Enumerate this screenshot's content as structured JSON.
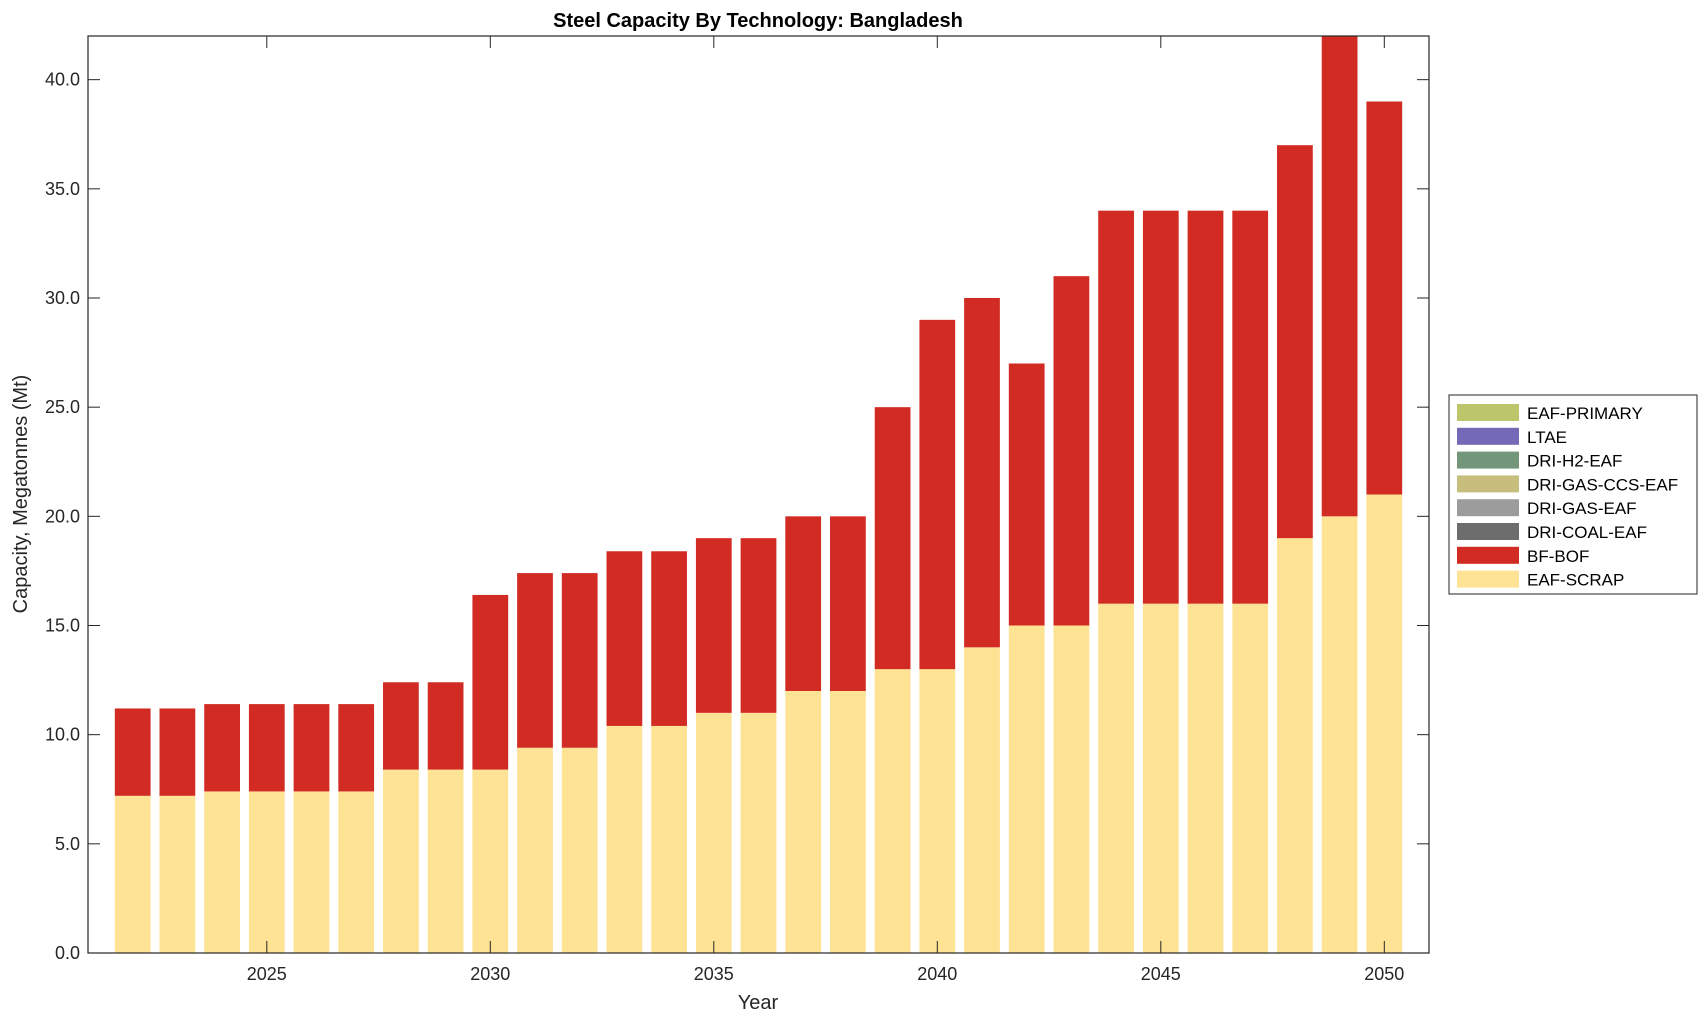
{
  "chart_data": {
    "type": "bar",
    "stacked": true,
    "title": "Steel Capacity By Technology: Bangladesh",
    "xlabel": "Year",
    "ylabel": "Capacity, Megatonnes (Mt)",
    "xlim": [
      2021,
      2051
    ],
    "ylim": [
      0,
      42
    ],
    "xticks": [
      2025,
      2030,
      2035,
      2040,
      2045,
      2050
    ],
    "xtick_labels": [
      "2025",
      "2030",
      "2035",
      "2040",
      "2045",
      "2050"
    ],
    "yticks": [
      0,
      5,
      10,
      15,
      20,
      25,
      30,
      35,
      40
    ],
    "ytick_labels": [
      "0.0",
      "5.0",
      "10.0",
      "15.0",
      "20.0",
      "25.0",
      "30.0",
      "35.0",
      "40.0"
    ],
    "grid": false,
    "legend_position": "right",
    "categories": [
      2022,
      2023,
      2024,
      2025,
      2026,
      2027,
      2028,
      2029,
      2030,
      2031,
      2032,
      2033,
      2034,
      2035,
      2036,
      2037,
      2038,
      2039,
      2040,
      2041,
      2042,
      2043,
      2044,
      2045,
      2046,
      2047,
      2048,
      2049,
      2050
    ],
    "series": [
      {
        "name": "EAF-SCRAP",
        "color": "#FEE395",
        "values": [
          7.2,
          7.2,
          7.4,
          7.4,
          7.4,
          7.4,
          8.4,
          8.4,
          8.4,
          9.4,
          9.4,
          10.4,
          10.4,
          11,
          11,
          12,
          12,
          13,
          13,
          14,
          15,
          15,
          16,
          16,
          16,
          16,
          19,
          20,
          21
        ]
      },
      {
        "name": "BF-BOF",
        "color": "#D22B24",
        "values": [
          4,
          4,
          4,
          4,
          4,
          4,
          4,
          4,
          8,
          8,
          8,
          8,
          8,
          8,
          8,
          8,
          8,
          12,
          16,
          16,
          12,
          16,
          18,
          18,
          18,
          18,
          18,
          22,
          18
        ]
      },
      {
        "name": "DRI-COAL-EAF",
        "color": "#6D6D6D",
        "values": [
          0,
          0,
          0,
          0,
          0,
          0,
          0,
          0,
          0,
          0,
          0,
          0,
          0,
          0,
          0,
          0,
          0,
          0,
          0,
          0,
          0,
          0,
          0,
          0,
          0,
          0,
          0,
          0,
          0
        ]
      },
      {
        "name": "DRI-GAS-EAF",
        "color": "#9C9C9C",
        "values": [
          0,
          0,
          0,
          0,
          0,
          0,
          0,
          0,
          0,
          0,
          0,
          0,
          0,
          0,
          0,
          0,
          0,
          0,
          0,
          0,
          0,
          0,
          0,
          0,
          0,
          0,
          0,
          0,
          0
        ]
      },
      {
        "name": "DRI-GAS-CCS-EAF",
        "color": "#C7BD7C",
        "values": [
          0,
          0,
          0,
          0,
          0,
          0,
          0,
          0,
          0,
          0,
          0,
          0,
          0,
          0,
          0,
          0,
          0,
          0,
          0,
          0,
          0,
          0,
          0,
          0,
          0,
          0,
          0,
          0,
          0
        ]
      },
      {
        "name": "DRI-H2-EAF",
        "color": "#73967A",
        "values": [
          0,
          0,
          0,
          0,
          0,
          0,
          0,
          0,
          0,
          0,
          0,
          0,
          0,
          0,
          0,
          0,
          0,
          0,
          0,
          0,
          0,
          0,
          0,
          0,
          0,
          0,
          0,
          0,
          0
        ]
      },
      {
        "name": "LTAE",
        "color": "#7469B6",
        "values": [
          0,
          0,
          0,
          0,
          0,
          0,
          0,
          0,
          0,
          0,
          0,
          0,
          0,
          0,
          0,
          0,
          0,
          0,
          0,
          0,
          0,
          0,
          0,
          0,
          0,
          0,
          0,
          0,
          0
        ]
      },
      {
        "name": "EAF-PRIMARY",
        "color": "#BDC66B",
        "values": [
          0,
          0,
          0,
          0,
          0,
          0,
          0,
          0,
          0,
          0,
          0,
          0,
          0,
          0,
          0,
          0,
          0,
          0,
          0,
          0,
          0,
          0,
          0,
          0,
          0,
          0,
          0,
          0,
          0
        ]
      }
    ],
    "legend_order": [
      "EAF-PRIMARY",
      "LTAE",
      "DRI-H2-EAF",
      "DRI-GAS-CCS-EAF",
      "DRI-GAS-EAF",
      "DRI-COAL-EAF",
      "BF-BOF",
      "EAF-SCRAP"
    ]
  }
}
